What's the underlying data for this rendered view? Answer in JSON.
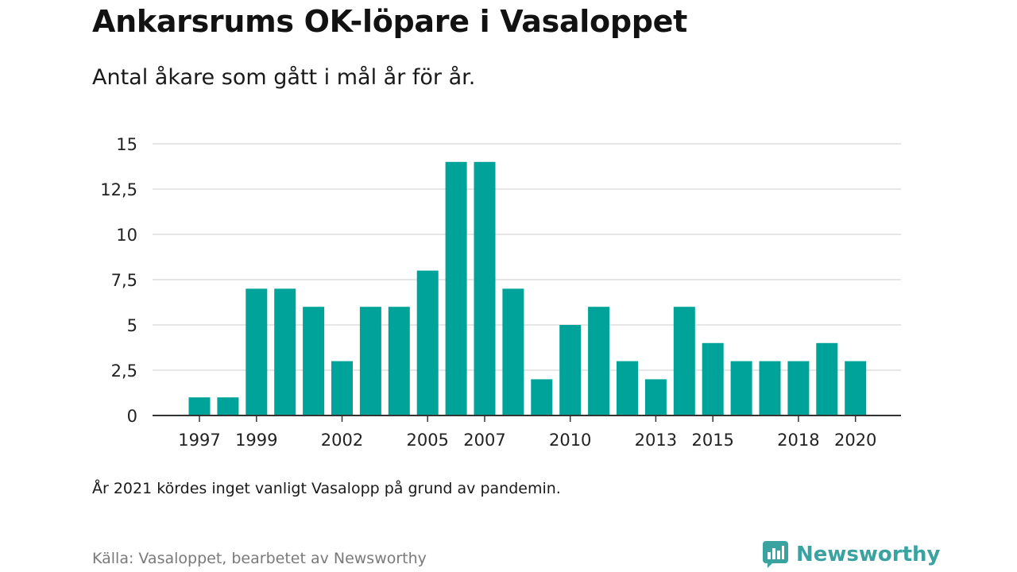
{
  "header": {
    "title": "Ankarsrums OK-löpare i Vasaloppet",
    "subtitle": "Antal åkare som gått i mål år för år."
  },
  "note": "År 2021 kördes inget vanligt Vasalopp på grund av pandemin.",
  "source": "Källa: Vasaloppet, bearbetet av Newsworthy",
  "brand": {
    "name": "Newsworthy",
    "icon": "newsworthy-logo-icon"
  },
  "colors": {
    "bar": "#00a39a",
    "grid": "#dddddd",
    "axis": "#333333",
    "brand": "#3aa3a0"
  },
  "chart_data": {
    "type": "bar",
    "categories": [
      "1997",
      "1998",
      "1999",
      "2000",
      "2001",
      "2002",
      "2003",
      "2004",
      "2005",
      "2006",
      "2007",
      "2008",
      "2009",
      "2010",
      "2011",
      "2012",
      "2013",
      "2014",
      "2015",
      "2016",
      "2017",
      "2018",
      "2019",
      "2020"
    ],
    "values": [
      1,
      1,
      7,
      7,
      6,
      3,
      6,
      6,
      8,
      14,
      14,
      7,
      2,
      5,
      6,
      3,
      2,
      6,
      4,
      3,
      3,
      3,
      4,
      3
    ],
    "x_tick_labels": [
      "1997",
      "1999",
      "2002",
      "2005",
      "2007",
      "2010",
      "2013",
      "2015",
      "2018",
      "2020"
    ],
    "y_ticks": [
      0,
      2.5,
      5,
      7.5,
      10,
      12.5,
      15
    ],
    "y_tick_labels": [
      "0",
      "2,5",
      "5",
      "7,5",
      "10",
      "12,5",
      "15"
    ],
    "ylim": [
      0,
      15
    ],
    "grid": true,
    "xlabel": "",
    "ylabel": ""
  }
}
